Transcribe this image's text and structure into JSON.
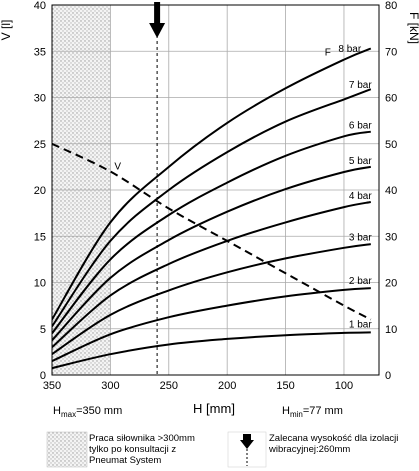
{
  "chart_data": {
    "type": "line",
    "y_left_label": "V [l]",
    "y_right_label": "F [kN]",
    "xlabel": "H [mm]",
    "xlim": [
      350,
      70
    ],
    "ylim_left": [
      0,
      40
    ],
    "ylim_right": [
      0,
      80
    ],
    "x_ticks": [
      "350",
      "300",
      "250",
      "200",
      "150",
      "100"
    ],
    "y_left_ticks": [
      "0",
      "5",
      "10",
      "15",
      "20",
      "25",
      "30",
      "35",
      "40"
    ],
    "y_right_ticks": [
      "0",
      "10",
      "20",
      "30",
      "40",
      "50",
      "60",
      "70",
      "80"
    ],
    "h_max_label": "H",
    "h_max_sub": "max",
    "h_max_value": "=350 mm",
    "h_min_label": "H",
    "h_min_sub": "min",
    "h_min_value": "=77 mm",
    "hatched_region_x": [
      350,
      300
    ],
    "recommended_height": 260,
    "force_axis": "right",
    "series": [
      {
        "name": "1 bar",
        "label_x": 86,
        "x": [
          350,
          300,
          250,
          200,
          150,
          100,
          77
        ],
        "y": [
          1.5,
          4.5,
          6.6,
          7.8,
          8.6,
          9.1,
          9.2
        ]
      },
      {
        "name": "2 bar",
        "label_x": 86,
        "x": [
          350,
          300,
          250,
          200,
          150,
          100,
          77
        ],
        "y": [
          3.0,
          8.8,
          12.5,
          15.0,
          17.0,
          18.4,
          18.8
        ]
      },
      {
        "name": "3 bar",
        "label_x": 86,
        "x": [
          350,
          300,
          250,
          200,
          150,
          100,
          77
        ],
        "y": [
          4.5,
          13.0,
          18.3,
          22.2,
          25.2,
          27.5,
          28.3
        ]
      },
      {
        "name": "4 bar",
        "label_x": 86,
        "x": [
          350,
          300,
          250,
          200,
          150,
          100,
          77
        ],
        "y": [
          6.0,
          17.2,
          24.0,
          29.0,
          33.0,
          36.3,
          37.4
        ]
      },
      {
        "name": "5 bar",
        "label_x": 86,
        "x": [
          350,
          300,
          250,
          200,
          150,
          100,
          77
        ],
        "y": [
          7.5,
          21.0,
          29.2,
          35.3,
          40.2,
          43.9,
          45.0
        ]
      },
      {
        "name": "6 bar",
        "label_x": 86,
        "x": [
          350,
          300,
          250,
          200,
          150,
          100,
          77
        ],
        "y": [
          9.0,
          25.0,
          34.6,
          41.6,
          47.4,
          51.6,
          52.6
        ]
      },
      {
        "name": "7 bar",
        "label_x": 86,
        "x": [
          350,
          300,
          250,
          200,
          150,
          100,
          77
        ],
        "y": [
          10.5,
          29.0,
          40.0,
          48.2,
          54.8,
          59.6,
          61.8
        ]
      },
      {
        "name": "8 bar",
        "label_x": 95,
        "x": [
          350,
          300,
          250,
          200,
          150,
          100,
          77
        ],
        "y": [
          12.0,
          33.0,
          45.0,
          54.5,
          62.0,
          68.2,
          70.6
        ]
      }
    ],
    "volume_series": {
      "name": "V",
      "axis": "left",
      "x": [
        350,
        300,
        250,
        200,
        150,
        100,
        77
      ],
      "y": [
        25.0,
        22.0,
        18.0,
        14.5,
        11.0,
        7.5,
        6.0
      ]
    }
  },
  "legend": {
    "hatch_text": [
      "Praca siłownika >300mm",
      "tylko po konsultacji z",
      "Pneumat System"
    ],
    "arrow_text": [
      "Zalecana wysokość dla izolacji",
      "wibracyjnej:260mm"
    ]
  }
}
